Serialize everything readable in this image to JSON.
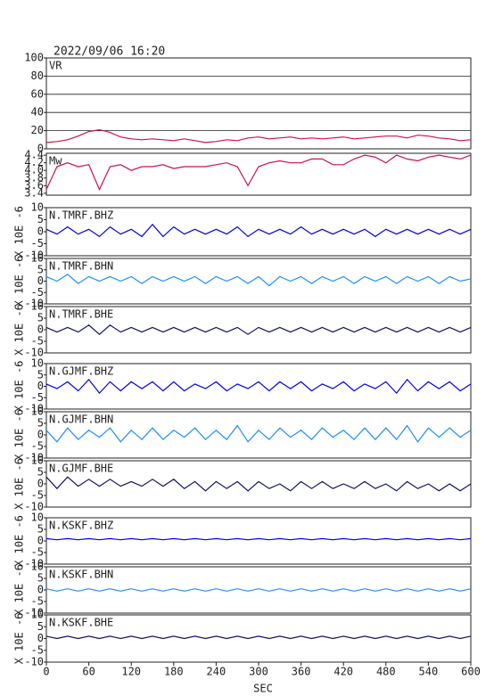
{
  "title": "2022/09/06 16:20",
  "chart_data": [
    {
      "type": "line",
      "title": "VR",
      "color": "#d0104c",
      "grid": true,
      "xlim": [
        0,
        600
      ],
      "ylim": [
        0,
        100
      ],
      "yticks": [
        0,
        20,
        40,
        60,
        80,
        100
      ],
      "x": [
        0,
        15,
        30,
        45,
        60,
        75,
        90,
        105,
        120,
        135,
        150,
        165,
        180,
        195,
        210,
        225,
        240,
        255,
        270,
        285,
        300,
        315,
        330,
        345,
        360,
        375,
        390,
        405,
        420,
        435,
        450,
        465,
        480,
        495,
        510,
        525,
        540,
        555,
        570,
        585,
        600
      ],
      "values": [
        7,
        8,
        10,
        14,
        19,
        21,
        18,
        13,
        11,
        10,
        11,
        10,
        9,
        11,
        9,
        7,
        8,
        10,
        9,
        12,
        13,
        11,
        12,
        13,
        11,
        12,
        11,
        12,
        13,
        11,
        12,
        13,
        14,
        14,
        12,
        15,
        14,
        12,
        11,
        9,
        10
      ]
    },
    {
      "type": "line",
      "title": "Mw",
      "color": "#d0104c",
      "xlim": [
        0,
        600
      ],
      "ylim": [
        3.35,
        4.45
      ],
      "yticks": [
        3.4,
        3.6,
        3.8,
        {
          "value": 4,
          "label": "4.0"
        },
        4.2,
        4.4
      ],
      "x": [
        0,
        15,
        30,
        45,
        60,
        75,
        90,
        105,
        120,
        135,
        150,
        165,
        180,
        195,
        210,
        225,
        240,
        255,
        270,
        285,
        300,
        315,
        330,
        345,
        360,
        375,
        390,
        405,
        420,
        435,
        450,
        465,
        480,
        495,
        510,
        525,
        540,
        555,
        570,
        585,
        600
      ],
      "values": [
        3.5,
        4.1,
        4.2,
        4.1,
        4.15,
        3.5,
        4.1,
        4.15,
        4.0,
        4.1,
        4.1,
        4.15,
        4.05,
        4.1,
        4.1,
        4.1,
        4.15,
        4.2,
        4.1,
        3.6,
        4.1,
        4.2,
        4.25,
        4.2,
        4.2,
        4.3,
        4.3,
        4.15,
        4.15,
        4.3,
        4.4,
        4.35,
        4.2,
        4.4,
        4.3,
        4.25,
        4.35,
        4.4,
        4.35,
        4.3,
        4.4
      ]
    },
    {
      "type": "line",
      "title": "N.TMRF.BHZ",
      "ylabel": "X 10E -6",
      "color": "#0000ee",
      "xlim": [
        0,
        600
      ],
      "ylim": [
        -10,
        10
      ],
      "yticks": [
        -10,
        -5,
        0,
        5,
        10
      ],
      "x": [
        0,
        15,
        30,
        45,
        60,
        75,
        90,
        105,
        120,
        135,
        150,
        165,
        180,
        195,
        210,
        225,
        240,
        255,
        270,
        285,
        300,
        315,
        330,
        345,
        360,
        375,
        390,
        405,
        420,
        435,
        450,
        465,
        480,
        495,
        510,
        525,
        540,
        555,
        570,
        585,
        600
      ],
      "values": [
        1,
        -1,
        2,
        -1,
        1,
        -2,
        2,
        -1,
        1,
        -2,
        3,
        -2,
        2,
        -1,
        1,
        -1,
        1,
        -1,
        2,
        -2,
        1,
        -1,
        1,
        -1,
        2,
        -1,
        1,
        -1,
        1,
        -1,
        1,
        -2,
        1,
        -1,
        1,
        -1,
        1,
        -1,
        1,
        -1,
        1
      ]
    },
    {
      "type": "line",
      "title": "N.TMRF.BHN",
      "ylabel": "X 10E -6",
      "color": "#1e8fff",
      "xlim": [
        0,
        600
      ],
      "ylim": [
        -10,
        10
      ],
      "yticks": [
        -10,
        -5,
        0,
        5,
        10
      ],
      "x": [
        0,
        15,
        30,
        45,
        60,
        75,
        90,
        105,
        120,
        135,
        150,
        165,
        180,
        195,
        210,
        225,
        240,
        255,
        270,
        285,
        300,
        315,
        330,
        345,
        360,
        375,
        390,
        405,
        420,
        435,
        450,
        465,
        480,
        495,
        510,
        525,
        540,
        555,
        570,
        585,
        600
      ],
      "values": [
        2,
        0,
        3,
        -1,
        2,
        0,
        2,
        0,
        2,
        -1,
        2,
        0,
        2,
        0,
        2,
        -1,
        2,
        0,
        2,
        -1,
        2,
        -2,
        2,
        0,
        2,
        -1,
        2,
        0,
        2,
        -1,
        2,
        0,
        2,
        -1,
        2,
        0,
        2,
        -1,
        2,
        0,
        1
      ]
    },
    {
      "type": "line",
      "title": "N.TMRF.BHE",
      "ylabel": "X 10E -6",
      "color": "#141464",
      "xlim": [
        0,
        600
      ],
      "ylim": [
        -10,
        10
      ],
      "yticks": [
        -10,
        -5,
        0,
        5,
        10
      ],
      "x": [
        0,
        15,
        30,
        45,
        60,
        75,
        90,
        105,
        120,
        135,
        150,
        165,
        180,
        195,
        210,
        225,
        240,
        255,
        270,
        285,
        300,
        315,
        330,
        345,
        360,
        375,
        390,
        405,
        420,
        435,
        450,
        465,
        480,
        495,
        510,
        525,
        540,
        555,
        570,
        585,
        600
      ],
      "values": [
        1,
        -1,
        1,
        -1,
        2,
        -2,
        2,
        -1,
        1,
        -1,
        1,
        -1,
        1,
        -1,
        1,
        -1,
        1,
        -1,
        1,
        -2,
        1,
        -1,
        1,
        -1,
        1,
        -1,
        1,
        -1,
        1,
        -1,
        1,
        -1,
        1,
        -1,
        1,
        -1,
        1,
        -1,
        1,
        -1,
        1
      ]
    },
    {
      "type": "line",
      "title": "N.GJMF.BHZ",
      "ylabel": "X 10E -6",
      "color": "#0000ee",
      "xlim": [
        0,
        600
      ],
      "ylim": [
        -10,
        10
      ],
      "yticks": [
        -10,
        -5,
        0,
        5,
        10
      ],
      "x": [
        0,
        15,
        30,
        45,
        60,
        75,
        90,
        105,
        120,
        135,
        150,
        165,
        180,
        195,
        210,
        225,
        240,
        255,
        270,
        285,
        300,
        315,
        330,
        345,
        360,
        375,
        390,
        405,
        420,
        435,
        450,
        465,
        480,
        495,
        510,
        525,
        540,
        555,
        570,
        585,
        600
      ],
      "values": [
        1,
        -1,
        2,
        -2,
        3,
        -3,
        2,
        -2,
        2,
        -1,
        2,
        -2,
        2,
        -2,
        1,
        -1,
        2,
        -2,
        1,
        -1,
        2,
        -2,
        2,
        -1,
        2,
        -2,
        1,
        -1,
        2,
        -2,
        1,
        -1,
        2,
        -3,
        3,
        -2,
        2,
        -1,
        2,
        -2,
        1
      ]
    },
    {
      "type": "line",
      "title": "N.GJMF.BHN",
      "ylabel": "X 10E -6",
      "color": "#1e8fff",
      "xlim": [
        0,
        600
      ],
      "ylim": [
        -10,
        10
      ],
      "yticks": [
        -10,
        -5,
        0,
        5,
        10
      ],
      "x": [
        0,
        15,
        30,
        45,
        60,
        75,
        90,
        105,
        120,
        135,
        150,
        165,
        180,
        195,
        210,
        225,
        240,
        255,
        270,
        285,
        300,
        315,
        330,
        345,
        360,
        375,
        390,
        405,
        420,
        435,
        450,
        465,
        480,
        495,
        510,
        525,
        540,
        555,
        570,
        585,
        600
      ],
      "values": [
        2,
        -3,
        3,
        -2,
        2,
        -1,
        3,
        -3,
        2,
        -2,
        3,
        -2,
        2,
        -1,
        3,
        -2,
        2,
        -2,
        4,
        -3,
        2,
        -2,
        3,
        -1,
        2,
        -2,
        3,
        -1,
        2,
        -2,
        3,
        -2,
        3,
        -2,
        4,
        -3,
        3,
        -1,
        3,
        -1,
        2
      ]
    },
    {
      "type": "line",
      "title": "N.GJMF.BHE",
      "ylabel": "X 10E -6",
      "color": "#141464",
      "xlim": [
        0,
        600
      ],
      "ylim": [
        -10,
        10
      ],
      "yticks": [
        -10,
        -5,
        0,
        5,
        10
      ],
      "x": [
        0,
        15,
        30,
        45,
        60,
        75,
        90,
        105,
        120,
        135,
        150,
        165,
        180,
        195,
        210,
        225,
        240,
        255,
        270,
        285,
        300,
        315,
        330,
        345,
        360,
        375,
        390,
        405,
        420,
        435,
        450,
        465,
        480,
        495,
        510,
        525,
        540,
        555,
        570,
        585,
        600
      ],
      "values": [
        3,
        -2,
        3,
        -1,
        2,
        -1,
        2,
        -1,
        1,
        -1,
        2,
        -1,
        2,
        -2,
        1,
        -3,
        1,
        -2,
        1,
        -3,
        1,
        -2,
        0,
        -3,
        1,
        -2,
        1,
        -2,
        0,
        -2,
        1,
        -2,
        0,
        -3,
        1,
        -2,
        0,
        -3,
        0,
        -3,
        0
      ]
    },
    {
      "type": "line",
      "title": "N.KSKF.BHZ",
      "ylabel": "X 10E -6",
      "color": "#0000ee",
      "xlim": [
        0,
        600
      ],
      "ylim": [
        -10,
        10
      ],
      "yticks": [
        -10,
        -5,
        0,
        5,
        10
      ],
      "x": [
        0,
        15,
        30,
        45,
        60,
        75,
        90,
        105,
        120,
        135,
        150,
        165,
        180,
        195,
        210,
        225,
        240,
        255,
        270,
        285,
        300,
        315,
        330,
        345,
        360,
        375,
        390,
        405,
        420,
        435,
        450,
        465,
        480,
        495,
        510,
        525,
        540,
        555,
        570,
        585,
        600
      ],
      "values": [
        1,
        0.5,
        1,
        0.5,
        1,
        0.5,
        1,
        0.5,
        1,
        0.5,
        1,
        0.5,
        1,
        0.5,
        1,
        0.5,
        1,
        0.5,
        1,
        0.5,
        1,
        0.5,
        1,
        0.5,
        1,
        0.5,
        1,
        0.5,
        1,
        0.5,
        1,
        0.5,
        1,
        0.5,
        1,
        0.5,
        1,
        0.5,
        1,
        0.5,
        1
      ]
    },
    {
      "type": "line",
      "title": "N.KSKF.BHN",
      "ylabel": "X 10E -6",
      "color": "#1e8fff",
      "xlim": [
        0,
        600
      ],
      "ylim": [
        -10,
        10
      ],
      "yticks": [
        -10,
        -5,
        0,
        5,
        10
      ],
      "x": [
        0,
        15,
        30,
        45,
        60,
        75,
        90,
        105,
        120,
        135,
        150,
        165,
        180,
        195,
        210,
        225,
        240,
        255,
        270,
        285,
        300,
        315,
        330,
        345,
        360,
        375,
        390,
        405,
        420,
        435,
        450,
        465,
        480,
        495,
        510,
        525,
        540,
        555,
        570,
        585,
        600
      ],
      "values": [
        0.5,
        -0.5,
        0.5,
        -0.5,
        0.5,
        -0.5,
        0.5,
        -0.5,
        0.5,
        -0.5,
        0.5,
        -0.5,
        0.5,
        -0.5,
        0.5,
        -0.5,
        0.5,
        -0.5,
        0.5,
        -0.5,
        0.5,
        -0.5,
        0.5,
        -0.5,
        0.5,
        -0.5,
        0.5,
        -0.5,
        0.5,
        -0.5,
        0.5,
        -0.5,
        0.5,
        -0.5,
        0.5,
        -0.5,
        0.5,
        -0.5,
        0.5,
        -0.5,
        0.5
      ]
    },
    {
      "type": "line",
      "title": "N.KSKF.BHE",
      "ylabel": "X 10E -6",
      "xlabel": "SEC",
      "color": "#141464",
      "xlim": [
        0,
        600
      ],
      "ylim": [
        -10,
        10
      ],
      "yticks": [
        -10,
        -5,
        0,
        5,
        10
      ],
      "xticks": [
        0,
        60,
        120,
        180,
        240,
        300,
        360,
        420,
        480,
        540,
        600
      ],
      "x": [
        0,
        15,
        30,
        45,
        60,
        75,
        90,
        105,
        120,
        135,
        150,
        165,
        180,
        195,
        210,
        225,
        240,
        255,
        270,
        285,
        300,
        315,
        330,
        345,
        360,
        375,
        390,
        405,
        420,
        435,
        450,
        465,
        480,
        495,
        510,
        525,
        540,
        555,
        570,
        585,
        600
      ],
      "values": [
        1,
        0,
        1,
        0,
        1,
        0,
        1,
        0,
        1,
        0,
        1,
        0,
        1,
        0,
        1,
        0,
        1,
        0,
        1,
        0,
        1,
        0,
        1,
        0,
        1,
        0,
        1,
        0,
        1,
        0,
        1,
        0,
        1,
        0,
        1,
        0,
        1,
        0,
        1,
        0,
        1
      ]
    }
  ]
}
